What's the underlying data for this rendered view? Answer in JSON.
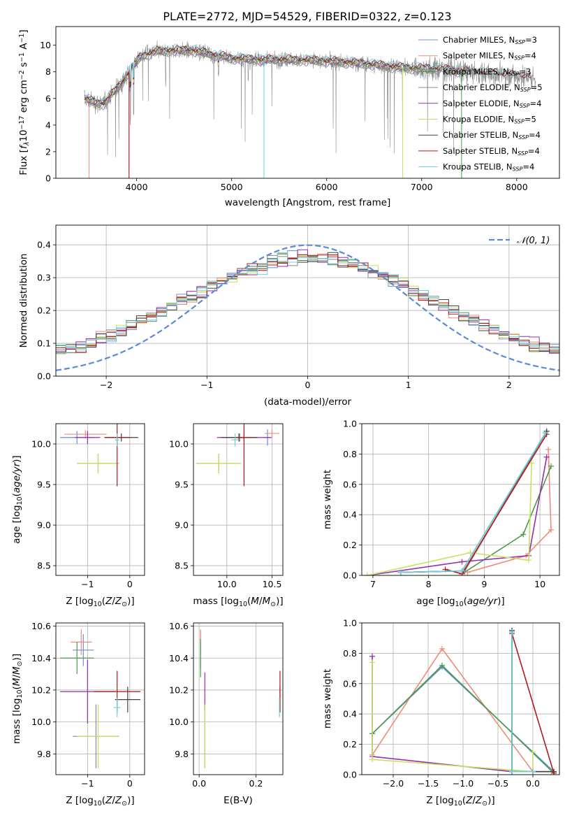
{
  "title": "PLATE=2772, MJD=54529, FIBERID=0322, z=0.123",
  "colors": {
    "Chabrier MILES": "#6a8fd8",
    "Salpeter MILES": "#f08a7a",
    "Kroupa MILES": "#4a9a4a",
    "Chabrier ELODIE": "#8a8a8a",
    "Salpeter ELODIE": "#9a2bb0",
    "Kroupa ELODIE": "#c8e060",
    "Chabrier STELIB": "#404040",
    "Salpeter STELIB": "#b01818",
    "Kroupa STELIB": "#70d0e0"
  },
  "chart_data": [
    {
      "type": "line",
      "id": "spectrum",
      "xlabel": "wavelength [Angstrom, rest frame]",
      "ylabel": "Flux [f_λ10^-17 erg cm^-2 s^-1 A^-1]",
      "xlim": [
        3150,
        8450
      ],
      "ylim": [
        0,
        11.4
      ],
      "xticks": [
        4000,
        5000,
        6000,
        7000,
        8000
      ],
      "yticks": [
        0,
        2,
        4,
        6,
        8,
        10
      ],
      "grid": false,
      "legend_position": "right",
      "series": [
        {
          "name": "Chabrier MILES",
          "label": "Chabrier MILES, N",
          "sub": "SSP",
          "n": "=3"
        },
        {
          "name": "Salpeter MILES",
          "label": "Salpeter MILES, N",
          "sub": "SSP",
          "n": "=4"
        },
        {
          "name": "Kroupa MILES",
          "label": "Kroupa MILES, N",
          "sub": "SSP",
          "n": "=3"
        },
        {
          "name": "Chabrier ELODIE",
          "label": "Chabrier ELODIE, N",
          "sub": "SSP",
          "n": "=5"
        },
        {
          "name": "Salpeter ELODIE",
          "label": "Salpeter ELODIE, N",
          "sub": "SSP",
          "n": "=4"
        },
        {
          "name": "Kroupa ELODIE",
          "label": "Kroupa ELODIE, N",
          "sub": "SSP",
          "n": "=5"
        },
        {
          "name": "Chabrier STELIB",
          "label": "Chabrier STELIB, N",
          "sub": "SSP",
          "n": "=4"
        },
        {
          "name": "Salpeter STELIB",
          "label": "Salpeter STELIB, N",
          "sub": "SSP",
          "n": "=4"
        },
        {
          "name": "Kroupa STELIB",
          "label": "Kroupa STELIB, N",
          "sub": "SSP",
          "n": "=4"
        }
      ],
      "continuum": {
        "x": [
          3450,
          3550,
          3650,
          3750,
          3850,
          3950,
          4050,
          4200,
          4400,
          4600,
          4800,
          5000,
          5300,
          5600,
          6000,
          6400,
          6800,
          7200,
          7600,
          8000,
          8200
        ],
        "y": [
          6.0,
          5.7,
          5.6,
          6.4,
          7.2,
          8.3,
          9.2,
          9.5,
          9.6,
          9.6,
          9.3,
          9.0,
          8.9,
          8.9,
          8.8,
          8.6,
          8.3,
          8.2,
          7.9,
          7.7,
          7.5
        ]
      }
    },
    {
      "type": "histogram",
      "id": "residuals",
      "xlabel": "(data-model)/error",
      "ylabel": "Normed distribution",
      "xlim": [
        -2.5,
        2.5
      ],
      "ylim": [
        0,
        0.46
      ],
      "xticks": [
        -2,
        -1,
        0,
        1,
        2
      ],
      "yticks": [
        0.0,
        0.1,
        0.2,
        0.3,
        0.4
      ],
      "bins": 50,
      "grid": true,
      "legend": "𝒩(0, 1)",
      "legend_position": "top-right",
      "reference_curve": "gaussian mean 0 sigma 1"
    },
    {
      "type": "scatter",
      "id": "z-age",
      "xlabel": "Z [log10(Z/Z_sun)]",
      "ylabel": "age [log10(age/yr)]",
      "xlim": [
        -1.75,
        0.35
      ],
      "ylim": [
        8.38,
        10.25
      ],
      "xticks": [
        -1,
        0
      ],
      "yticks": [
        8.5,
        9.0,
        9.5,
        10.0
      ],
      "grid": true,
      "points": [
        {
          "model": "Chabrier MILES",
          "x": -1.25,
          "y": 10.08,
          "xerr": 0.4,
          "yerr": 0.08
        },
        {
          "model": "Salpeter MILES",
          "x": -1.05,
          "y": 10.12,
          "xerr": 0.5,
          "yerr": 0.05
        },
        {
          "model": "Kroupa MILES",
          "x": -0.75,
          "y": 9.76,
          "xerr": 0.5,
          "yerr": 0.12
        },
        {
          "model": "Chabrier ELODIE",
          "x": -0.3,
          "y": 10.08,
          "xerr": 0.1,
          "yerr": 0.06
        },
        {
          "model": "Salpeter ELODIE",
          "x": -1.0,
          "y": 10.08,
          "xerr": 0.3,
          "yerr": 0.08
        },
        {
          "model": "Kroupa ELODIE",
          "x": -0.75,
          "y": 9.76,
          "xerr": 0.5,
          "yerr": 0.12
        },
        {
          "model": "Chabrier STELIB",
          "x": -0.2,
          "y": 10.08,
          "xerr": 0.4,
          "yerr": 0.05
        },
        {
          "model": "Salpeter STELIB",
          "x": -0.3,
          "y": 10.08,
          "xerr": 0.3,
          "yerr": 0.6
        },
        {
          "model": "Kroupa STELIB",
          "x": -0.3,
          "y": 10.05,
          "xerr": 0.05,
          "yerr": 0.08
        }
      ]
    },
    {
      "type": "scatter",
      "id": "mass-age",
      "xlabel": "mass [log10(M/M_sun)]",
      "ylabel": "",
      "xlim": [
        9.63,
        10.62
      ],
      "ylim": [
        8.38,
        10.25
      ],
      "xticks": [
        10.0,
        10.5
      ],
      "yticks": [
        8.5,
        9.0,
        9.5,
        10.0
      ],
      "grid": true,
      "points": [
        {
          "model": "Chabrier MILES",
          "x": 10.45,
          "y": 10.08,
          "xerr": 0.05,
          "yerr": 0.1
        },
        {
          "model": "Salpeter MILES",
          "x": 10.5,
          "y": 10.13,
          "xerr": 0.08,
          "yerr": 0.05
        },
        {
          "model": "Kroupa MILES",
          "x": 9.91,
          "y": 9.76,
          "xerr": 0.25,
          "yerr": 0.12
        },
        {
          "model": "Chabrier ELODIE",
          "x": 10.13,
          "y": 10.08,
          "xerr": 0.05,
          "yerr": 0.05
        },
        {
          "model": "Salpeter ELODIE",
          "x": 10.19,
          "y": 10.08,
          "xerr": 0.3,
          "yerr": 0.05
        },
        {
          "model": "Kroupa ELODIE",
          "x": 9.91,
          "y": 9.76,
          "xerr": 0.25,
          "yerr": 0.12
        },
        {
          "model": "Chabrier STELIB",
          "x": 10.14,
          "y": 10.08,
          "xerr": 0.2,
          "yerr": 0.05
        },
        {
          "model": "Salpeter STELIB",
          "x": 10.19,
          "y": 10.08,
          "xerr": 0.1,
          "yerr": 0.6
        },
        {
          "model": "Kroupa STELIB",
          "x": 10.09,
          "y": 10.05,
          "xerr": 0.04,
          "yerr": 0.08
        }
      ]
    },
    {
      "type": "line",
      "id": "age-weight",
      "xlabel": "age [log10(age/yr)]",
      "ylabel": "mass weight",
      "xlim": [
        6.8,
        10.35
      ],
      "ylim": [
        0,
        1.0
      ],
      "xticks": [
        7,
        8,
        9,
        10
      ],
      "yticks": [
        0.0,
        0.2,
        0.4,
        0.6,
        0.8,
        1.0
      ],
      "grid": true,
      "series": [
        {
          "model": "Chabrier MILES",
          "x": [
            7.5,
            8.65,
            10.12
          ],
          "y": [
            0.02,
            0.03,
            0.95
          ]
        },
        {
          "model": "Salpeter MILES",
          "x": [
            8.7,
            9.75,
            10.2,
            10.15
          ],
          "y": [
            0.02,
            0.13,
            0.3,
            0.83
          ]
        },
        {
          "model": "Kroupa MILES",
          "x": [
            8.6,
            9.7,
            10.2
          ],
          "y": [
            0.01,
            0.27,
            0.72
          ]
        },
        {
          "model": "Chabrier ELODIE",
          "x": [
            7.5,
            8.65,
            10.1
          ],
          "y": [
            0.02,
            0.03,
            0.94
          ]
        },
        {
          "model": "Salpeter ELODIE",
          "x": [
            6.9,
            8.6,
            9.8,
            10.12
          ],
          "y": [
            0.0,
            0.09,
            0.13,
            0.78
          ]
        },
        {
          "model": "Kroupa ELODIE",
          "x": [
            6.9,
            8.75,
            9.8,
            9.85
          ],
          "y": [
            0.0,
            0.15,
            0.1,
            0.74
          ]
        },
        {
          "model": "Chabrier STELIB",
          "x": [
            7.5,
            8.6,
            10.12
          ],
          "y": [
            0.02,
            0.03,
            0.95
          ]
        },
        {
          "model": "Salpeter STELIB",
          "x": [
            8.3,
            8.6,
            10.12
          ],
          "y": [
            0.04,
            0.01,
            0.93
          ]
        },
        {
          "model": "Kroupa STELIB",
          "x": [
            7.5,
            8.6,
            10.1
          ],
          "y": [
            0.02,
            0.03,
            0.94
          ]
        }
      ]
    },
    {
      "type": "scatter",
      "id": "z-mass",
      "xlabel": "Z [log10(Z/Z_sun)]",
      "ylabel": "mass [log10(M/M_sun)]",
      "xlim": [
        -1.75,
        0.35
      ],
      "ylim": [
        9.67,
        10.62
      ],
      "xticks": [
        -1,
        0
      ],
      "yticks": [
        9.8,
        10.0,
        10.2,
        10.4,
        10.6
      ],
      "grid": true,
      "points": [
        {
          "model": "Chabrier MILES",
          "x": -1.1,
          "y": 10.45,
          "xerr": 0.25,
          "yerr": 0.1
        },
        {
          "model": "Salpeter MILES",
          "x": -1.15,
          "y": 10.5,
          "xerr": 0.25,
          "yerr": 0.08
        },
        {
          "model": "Kroupa MILES",
          "x": -1.25,
          "y": 10.4,
          "xerr": 0.4,
          "yerr": 0.1
        },
        {
          "model": "Chabrier ELODIE",
          "x": -0.8,
          "y": 9.91,
          "xerr": 0.55,
          "yerr": 0.2
        },
        {
          "model": "Salpeter ELODIE",
          "x": -1.0,
          "y": 10.19,
          "xerr": 0.65,
          "yerr": 0.2
        },
        {
          "model": "Kroupa ELODIE",
          "x": -0.75,
          "y": 9.91,
          "xerr": 0.5,
          "yerr": 0.2
        },
        {
          "model": "Chabrier STELIB",
          "x": -0.05,
          "y": 10.14,
          "xerr": 0.3,
          "yerr": 0.08
        },
        {
          "model": "Salpeter STELIB",
          "x": -0.3,
          "y": 10.19,
          "xerr": 0.55,
          "yerr": 0.13
        },
        {
          "model": "Kroupa STELIB",
          "x": -0.3,
          "y": 10.09,
          "xerr": 0.08,
          "yerr": 0.06
        }
      ]
    },
    {
      "type": "scatter",
      "id": "ebv-mass",
      "xlabel": "E(B-V)",
      "ylabel": "",
      "xlim": [
        -0.02,
        0.295
      ],
      "ylim": [
        9.67,
        10.62
      ],
      "xticks": [
        0.0,
        0.2
      ],
      "yticks": [
        9.8,
        10.0,
        10.2,
        10.4,
        10.6
      ],
      "grid": true,
      "points": [
        {
          "model": "Chabrier MILES",
          "x": 0.005,
          "y": 10.45,
          "yerr": 0.12
        },
        {
          "model": "Salpeter MILES",
          "x": 0.005,
          "y": 10.5,
          "yerr": 0.08
        },
        {
          "model": "Kroupa MILES",
          "x": 0.005,
          "y": 10.4,
          "yerr": 0.12
        },
        {
          "model": "Chabrier ELODIE",
          "x": 0.02,
          "y": 9.91,
          "yerr": 0.2
        },
        {
          "model": "Salpeter ELODIE",
          "x": 0.02,
          "y": 10.19,
          "yerr": 0.12
        },
        {
          "model": "Kroupa ELODIE",
          "x": 0.02,
          "y": 9.91,
          "yerr": 0.2
        },
        {
          "model": "Chabrier STELIB",
          "x": 0.285,
          "y": 10.14,
          "yerr": 0.08
        },
        {
          "model": "Salpeter STELIB",
          "x": 0.285,
          "y": 10.19,
          "yerr": 0.13
        },
        {
          "model": "Kroupa STELIB",
          "x": 0.283,
          "y": 10.09,
          "yerr": 0.06
        }
      ]
    },
    {
      "type": "line",
      "id": "z-weight",
      "xlabel": "Z [log10(Z/Z_sun)]",
      "ylabel": "mass weight",
      "xlim": [
        -2.45,
        0.38
      ],
      "ylim": [
        0,
        1.0
      ],
      "xticks": [
        -2.0,
        -1.5,
        -1.0,
        -0.5,
        0.0
      ],
      "yticks": [
        0.0,
        0.2,
        0.4,
        0.6,
        0.8,
        1.0
      ],
      "grid": true,
      "series": [
        {
          "model": "Chabrier MILES",
          "x": [
            -2.3,
            -1.3,
            0.3,
            0.0,
            -0.3,
            -0.3
          ],
          "y": [
            0.27,
            0.71,
            0.02,
            0.02,
            0.02,
            0.95
          ]
        },
        {
          "model": "Salpeter MILES",
          "x": [
            -2.3,
            -1.3,
            0.0,
            0.0
          ],
          "y": [
            0.13,
            0.83,
            0.02,
            0.02
          ]
        },
        {
          "model": "Kroupa MILES",
          "x": [
            -2.3,
            -1.3,
            0.3
          ],
          "y": [
            0.27,
            0.72,
            0.01
          ]
        },
        {
          "model": "Chabrier ELODIE",
          "x": [
            -0.3,
            -0.3,
            0.0
          ],
          "y": [
            0.94,
            0.02,
            0.02
          ]
        },
        {
          "model": "Salpeter ELODIE",
          "x": [
            -2.3,
            -2.3,
            -0.3,
            0.0
          ],
          "y": [
            0.78,
            0.12,
            0.02,
            0.02
          ]
        },
        {
          "model": "Kroupa ELODIE",
          "x": [
            -2.3,
            -2.3,
            0.0,
            0.0
          ],
          "y": [
            0.74,
            0.1,
            0.02,
            0.15
          ]
        },
        {
          "model": "Chabrier STELIB",
          "x": [
            -0.3,
            -0.3,
            0.3
          ],
          "y": [
            0.95,
            0.02,
            0.02
          ]
        },
        {
          "model": "Salpeter STELIB",
          "x": [
            -0.3,
            0.3
          ],
          "y": [
            0.93,
            0.01
          ]
        },
        {
          "model": "Kroupa STELIB",
          "x": [
            -0.3,
            -0.3,
            0.0
          ],
          "y": [
            0.94,
            0.02,
            0.02
          ]
        }
      ]
    }
  ]
}
